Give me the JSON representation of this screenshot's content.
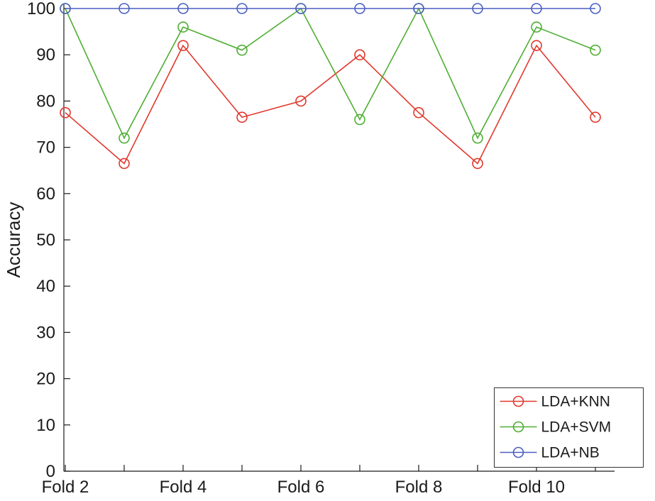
{
  "figure": {
    "background_color": "#ffffff",
    "axis_color": "#1a1a1a"
  },
  "chart_data": {
    "type": "line",
    "title": "",
    "xlabel": "",
    "ylabel": "Accuracy",
    "marker": "open-circle",
    "grid": false,
    "legend_position": "bottom-right",
    "ylim": [
      0,
      100
    ],
    "yticks": [
      0,
      10,
      20,
      30,
      40,
      50,
      60,
      70,
      80,
      90,
      100
    ],
    "x_fold_numbers": [
      2,
      3,
      4,
      5,
      6,
      7,
      8,
      9,
      10,
      11
    ],
    "xtick_folds": [
      2,
      4,
      6,
      8,
      10
    ],
    "xtick_labels": [
      "Fold 2",
      "Fold 4",
      "Fold 6",
      "Fold 8",
      "Fold 10"
    ],
    "series": [
      {
        "name": "LDA+KNN",
        "color": "#e2382d",
        "values": [
          77.5,
          66.5,
          92,
          76.5,
          80,
          90,
          77.5,
          66.5,
          92,
          76.5
        ]
      },
      {
        "name": "LDA+SVM",
        "color": "#4fae33",
        "values": [
          100,
          72,
          96,
          91,
          100,
          76,
          100,
          72,
          96,
          91
        ]
      },
      {
        "name": "LDA+NB",
        "color": "#4a5fc1",
        "values": [
          100,
          100,
          100,
          100,
          100,
          100,
          100,
          100,
          100,
          100
        ]
      }
    ]
  }
}
